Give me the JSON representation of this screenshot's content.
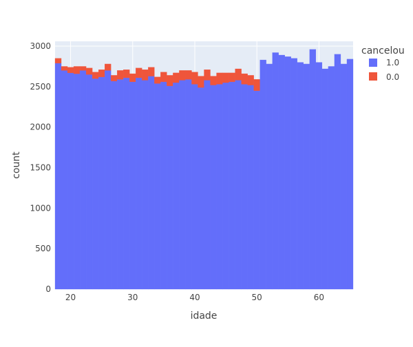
{
  "chart_data": {
    "type": "bar",
    "stacked": true,
    "xlabel": "idade",
    "ylabel": "count",
    "xlim": [
      17.5,
      65.5
    ],
    "ylim": [
      0,
      3060
    ],
    "x_ticks": [
      20,
      30,
      40,
      50,
      60
    ],
    "y_ticks": [
      0,
      500,
      1000,
      1500,
      2000,
      2500,
      3000
    ],
    "x_tick_labels": [
      "20",
      "30",
      "40",
      "50",
      "60"
    ],
    "y_tick_labels": [
      "0",
      "500",
      "1000",
      "1500",
      "2000",
      "2500",
      "3000"
    ],
    "grid": true,
    "legend": {
      "title": "cancelou",
      "position": "top-right"
    },
    "x": [
      18,
      19,
      20,
      21,
      22,
      23,
      24,
      25,
      26,
      27,
      28,
      29,
      30,
      31,
      32,
      33,
      34,
      35,
      36,
      37,
      38,
      39,
      40,
      41,
      42,
      43,
      44,
      45,
      46,
      47,
      48,
      49,
      50,
      51,
      52,
      53,
      54,
      55,
      56,
      57,
      58,
      59,
      60,
      61,
      62,
      63,
      64,
      65
    ],
    "series": [
      {
        "name": "1.0",
        "color": "#636efa",
        "values": [
          2790,
          2700,
          2670,
          2660,
          2700,
          2650,
          2600,
          2620,
          2700,
          2570,
          2590,
          2610,
          2560,
          2610,
          2580,
          2630,
          2540,
          2560,
          2510,
          2550,
          2580,
          2590,
          2530,
          2490,
          2580,
          2520,
          2530,
          2550,
          2560,
          2580,
          2530,
          2520,
          2450,
          2830,
          2780,
          2920,
          2890,
          2870,
          2850,
          2800,
          2780,
          2960,
          2800,
          2720,
          2750,
          2900,
          2780,
          2840
        ]
      },
      {
        "name": "0.0",
        "color": "#ef553b",
        "values": [
          60,
          50,
          70,
          90,
          50,
          80,
          80,
          90,
          80,
          70,
          110,
          100,
          100,
          120,
          130,
          110,
          80,
          120,
          130,
          120,
          120,
          110,
          150,
          140,
          130,
          110,
          140,
          120,
          110,
          140,
          130,
          120,
          140,
          0,
          0,
          0,
          0,
          0,
          0,
          0,
          0,
          0,
          0,
          0,
          0,
          0,
          0,
          0
        ]
      }
    ]
  }
}
